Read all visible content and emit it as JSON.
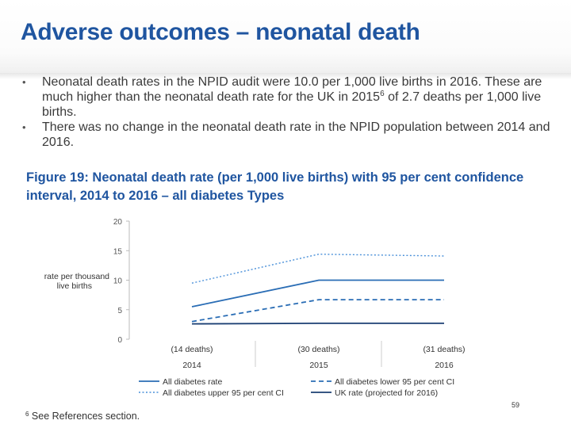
{
  "title": "Adverse outcomes – neonatal death",
  "bullets": [
    {
      "pre": "Neonatal death rates in the NPID audit were 10.0 per 1,000 live births in 2016. These are much higher than the neonatal death rate for the UK in 2015",
      "sup": "6",
      "post": " of 2.7 deaths per 1,000 live births."
    },
    {
      "pre": "There was no change in the neonatal death rate in the NPID population between 2014 and 2016.",
      "sup": "",
      "post": ""
    }
  ],
  "figure_caption": "Figure 19: Neonatal death rate (per 1,000 live births) with 95 per cent confidence interval, 2014 to 2016 – all diabetes Types",
  "footnote": {
    "marker": "6",
    "text": " See References section."
  },
  "page_number": "59",
  "chart_data": {
    "type": "line",
    "x": [
      "2014",
      "2015",
      "2016"
    ],
    "x_annotations": [
      "(14 deaths)",
      "(30 deaths)",
      "(31 deaths)"
    ],
    "ylabel": "rate per thousand live births",
    "ylim": [
      0,
      20
    ],
    "yticks": [
      0,
      5,
      10,
      15,
      20
    ],
    "grid": false,
    "legend_position": "bottom",
    "series": [
      {
        "name": "All diabetes rate",
        "values": [
          5.5,
          10.0,
          10.0
        ],
        "color": "#2a6db5",
        "style": "solid"
      },
      {
        "name": "All diabetes lower 95 per cent CI",
        "values": [
          3.0,
          6.7,
          6.7
        ],
        "color": "#2a6db5",
        "style": "dashed"
      },
      {
        "name": "All diabetes upper 95 per cent CI",
        "values": [
          9.5,
          14.4,
          14.1
        ],
        "color": "#4a90d9",
        "style": "dotted"
      },
      {
        "name": "UK rate (projected for 2016)",
        "values": [
          2.6,
          2.7,
          2.7
        ],
        "color": "#1b3f73",
        "style": "solid"
      }
    ]
  }
}
